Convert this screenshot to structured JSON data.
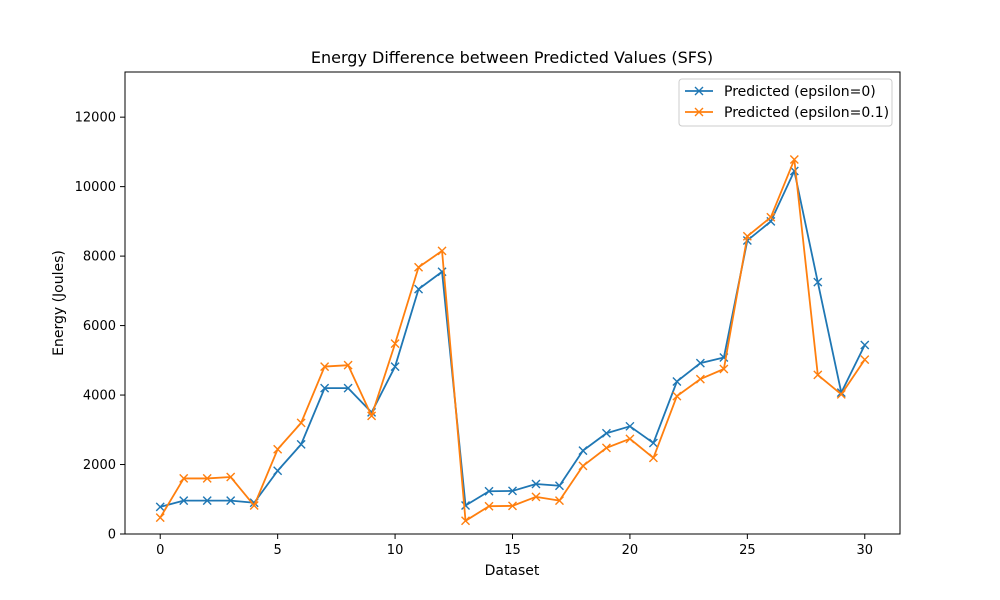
{
  "chart_data": {
    "type": "line",
    "title": "Energy Difference between Predicted Values (SFS)",
    "xlabel": "Dataset",
    "ylabel": "Energy (Joules)",
    "xlim": [
      -1.5,
      31.5
    ],
    "ylim": [
      0,
      13300
    ],
    "xticks": [
      0,
      5,
      10,
      15,
      20,
      25,
      30
    ],
    "yticks": [
      0,
      2000,
      4000,
      6000,
      8000,
      10000,
      12000
    ],
    "grid": false,
    "legend_position": "top-right",
    "x": [
      0,
      1,
      2,
      3,
      4,
      5,
      6,
      7,
      8,
      9,
      10,
      11,
      12,
      13,
      14,
      15,
      16,
      17,
      18,
      19,
      20,
      21,
      22,
      23,
      24,
      25,
      26,
      27,
      28,
      29,
      30
    ],
    "series": [
      {
        "name": "Predicted (epsilon=0)",
        "color": "#1f77b4",
        "marker": "x",
        "values": [
          780,
          960,
          960,
          960,
          900,
          1820,
          2580,
          4200,
          4200,
          3500,
          4820,
          7050,
          7550,
          820,
          1230,
          1240,
          1440,
          1390,
          2400,
          2900,
          3100,
          2620,
          4390,
          4920,
          5080,
          8450,
          9000,
          10450,
          7250,
          4070,
          5440
        ]
      },
      {
        "name": "Predicted (epsilon=0.1)",
        "color": "#ff7f0e",
        "marker": "x",
        "values": [
          470,
          1600,
          1600,
          1640,
          820,
          2440,
          3200,
          4820,
          4860,
          3400,
          5480,
          7680,
          8150,
          380,
          800,
          810,
          1070,
          960,
          1960,
          2480,
          2740,
          2190,
          3970,
          4460,
          4750,
          8570,
          9120,
          10780,
          4580,
          4020,
          5020
        ]
      }
    ]
  }
}
